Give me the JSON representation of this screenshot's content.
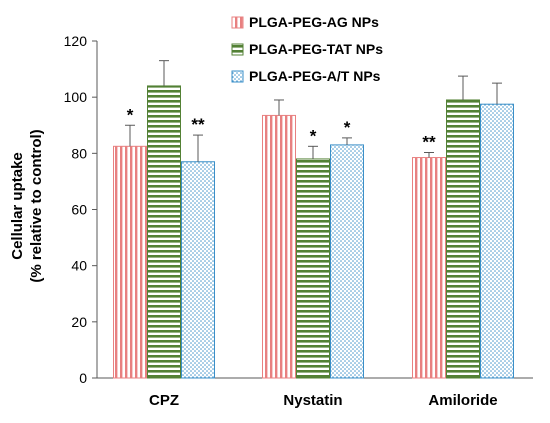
{
  "chart_data": {
    "type": "bar",
    "categories": [
      "CPZ",
      "Nystatin",
      "Amiloride"
    ],
    "ylabel_line1": "Cellular uptake",
    "ylabel_line2": "(% relative to control)",
    "ylim": [
      0,
      120
    ],
    "yticks": [
      0,
      20,
      40,
      60,
      80,
      100,
      120
    ],
    "grid": false,
    "legend_position": "top-right",
    "series": [
      {
        "name": "PLGA-PEG-AG NPs",
        "color": "#e88080",
        "pattern": "vertical-stripes",
        "values": [
          82.5,
          93.5,
          78.5
        ],
        "errors": [
          7.5,
          5.5,
          1.8
        ],
        "significance": [
          "*",
          "",
          "**"
        ]
      },
      {
        "name": "PLGA-PEG-TAT NPs",
        "color": "#538135",
        "pattern": "horizontal-stripes",
        "values": [
          104,
          78,
          99
        ],
        "errors": [
          9,
          4.5,
          8.5
        ],
        "significance": [
          "",
          "*",
          ""
        ]
      },
      {
        "name": "PLGA-PEG-A/T NPs",
        "color": "#3a8fc8",
        "pattern": "dots",
        "values": [
          77,
          83,
          97.5
        ],
        "errors": [
          9.5,
          2.5,
          7.5
        ],
        "significance": [
          "**",
          "*",
          ""
        ]
      }
    ]
  }
}
